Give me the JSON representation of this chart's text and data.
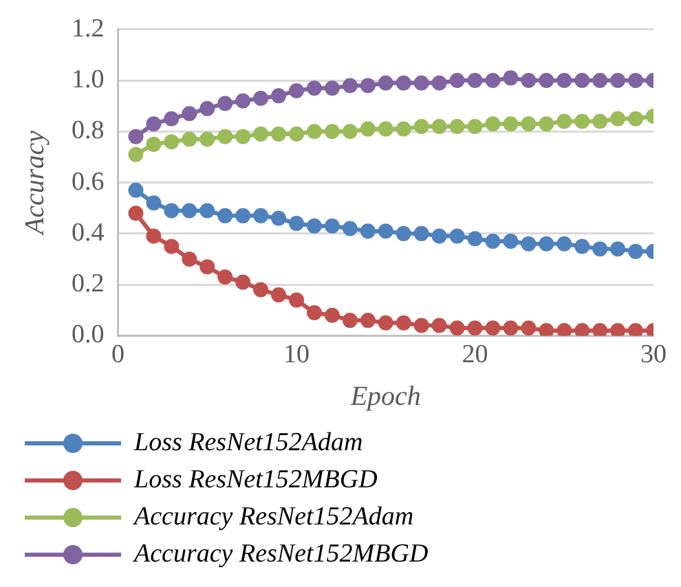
{
  "chart_data": {
    "type": "line",
    "xlabel": "Epoch",
    "ylabel": "Accuracy",
    "x": [
      1,
      2,
      3,
      4,
      5,
      6,
      7,
      8,
      9,
      10,
      11,
      12,
      13,
      14,
      15,
      16,
      17,
      18,
      19,
      20,
      21,
      22,
      23,
      24,
      25,
      26,
      27,
      28,
      29,
      30
    ],
    "series": [
      {
        "name": "Loss ResNet152Adam",
        "color": "#4f81bd",
        "values": [
          0.57,
          0.52,
          0.49,
          0.49,
          0.49,
          0.47,
          0.47,
          0.47,
          0.46,
          0.44,
          0.43,
          0.43,
          0.42,
          0.41,
          0.41,
          0.4,
          0.4,
          0.39,
          0.39,
          0.38,
          0.37,
          0.37,
          0.36,
          0.36,
          0.36,
          0.35,
          0.34,
          0.34,
          0.33,
          0.33
        ]
      },
      {
        "name": "Loss ResNet152MBGD",
        "color": "#c0504d",
        "values": [
          0.48,
          0.39,
          0.35,
          0.3,
          0.27,
          0.23,
          0.21,
          0.18,
          0.16,
          0.14,
          0.09,
          0.08,
          0.06,
          0.06,
          0.05,
          0.05,
          0.04,
          0.04,
          0.03,
          0.03,
          0.03,
          0.03,
          0.03,
          0.02,
          0.02,
          0.02,
          0.02,
          0.02,
          0.02,
          0.02
        ]
      },
      {
        "name": "Accuracy ResNet152Adam",
        "color": "#9bbb59",
        "values": [
          0.71,
          0.75,
          0.76,
          0.77,
          0.77,
          0.78,
          0.78,
          0.79,
          0.79,
          0.79,
          0.8,
          0.8,
          0.8,
          0.81,
          0.81,
          0.81,
          0.82,
          0.82,
          0.82,
          0.82,
          0.83,
          0.83,
          0.83,
          0.83,
          0.84,
          0.84,
          0.84,
          0.85,
          0.85,
          0.86
        ]
      },
      {
        "name": "Accuracy ResNet152MBGD",
        "color": "#8064a2",
        "values": [
          0.78,
          0.83,
          0.85,
          0.87,
          0.89,
          0.91,
          0.92,
          0.93,
          0.94,
          0.96,
          0.97,
          0.97,
          0.98,
          0.98,
          0.99,
          0.99,
          0.99,
          0.99,
          1.0,
          1.0,
          1.0,
          1.01,
          1.0,
          1.0,
          1.0,
          1.0,
          1.0,
          1.0,
          1.0,
          1.0
        ]
      }
    ],
    "xlim": [
      0,
      30
    ],
    "xticks": [
      0,
      10,
      20,
      30
    ],
    "ylim": [
      0,
      1.2
    ],
    "yticks": [
      {
        "value": 0,
        "label": "0.0"
      },
      {
        "value": 0.2,
        "label": "0.2"
      },
      {
        "value": 0.4,
        "label": "0.4"
      },
      {
        "value": 0.6,
        "label": "0.6"
      },
      {
        "value": 0.8,
        "label": "0.8"
      },
      {
        "value": 1,
        "label": "1.0"
      },
      {
        "value": 1.2,
        "label": "1.2"
      }
    ],
    "grid": "y",
    "legend": "bottom",
    "marker": "circle",
    "line_style": "solid"
  }
}
